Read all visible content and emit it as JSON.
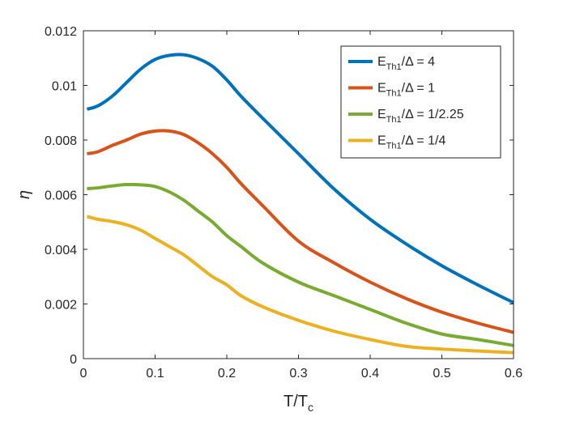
{
  "chart_data": {
    "type": "line",
    "title": "",
    "xlabel": "T/T",
    "xlabel_sub": "c",
    "ylabel": "η",
    "xlim": [
      0,
      0.6
    ],
    "ylim": [
      0,
      0.012
    ],
    "xticks": [
      0,
      0.1,
      0.2,
      0.3,
      0.4,
      0.5,
      0.6
    ],
    "xtick_labels": [
      "0",
      "0.1",
      "0.2",
      "0.3",
      "0.4",
      "0.5",
      "0.6"
    ],
    "yticks": [
      0,
      0.002,
      0.004,
      0.006,
      0.008,
      0.01,
      0.012
    ],
    "ytick_labels": [
      "0",
      "0.002",
      "0.004",
      "0.006",
      "0.008",
      "0.01",
      "0.012"
    ],
    "grid": false,
    "legend_position": "top-right",
    "series": [
      {
        "name": "E_Th1/Δ = 4",
        "label_main": "E",
        "label_sub": "Th1",
        "label_rest": "/Δ = 4",
        "color": "#0072BD",
        "x": [
          0.005,
          0.02,
          0.04,
          0.06,
          0.08,
          0.1,
          0.12,
          0.14,
          0.16,
          0.18,
          0.2,
          0.22,
          0.25,
          0.3,
          0.35,
          0.4,
          0.45,
          0.5,
          0.55,
          0.6
        ],
        "y": [
          0.00913,
          0.00925,
          0.0096,
          0.0101,
          0.0106,
          0.01095,
          0.0111,
          0.01112,
          0.01098,
          0.0107,
          0.0102,
          0.0096,
          0.0088,
          0.0075,
          0.0062,
          0.0051,
          0.0042,
          0.0034,
          0.0027,
          0.00205
        ]
      },
      {
        "name": "E_Th1/Δ = 1",
        "label_main": "E",
        "label_sub": "Th1",
        "label_rest": "/Δ = 1",
        "color": "#D95319",
        "x": [
          0.005,
          0.02,
          0.04,
          0.06,
          0.08,
          0.1,
          0.12,
          0.14,
          0.16,
          0.18,
          0.2,
          0.22,
          0.25,
          0.3,
          0.35,
          0.4,
          0.45,
          0.5,
          0.55,
          0.6
        ],
        "y": [
          0.0075,
          0.00757,
          0.0078,
          0.008,
          0.00822,
          0.00833,
          0.00833,
          0.0082,
          0.0079,
          0.0075,
          0.007,
          0.0064,
          0.0056,
          0.0043,
          0.0035,
          0.0028,
          0.0022,
          0.0017,
          0.0013,
          0.00096
        ]
      },
      {
        "name": "E_Th1/Δ = 1/2.25",
        "label_main": "E",
        "label_sub": "Th1",
        "label_rest": "/Δ = 1/2.25",
        "color": "#77AC30",
        "x": [
          0.005,
          0.02,
          0.04,
          0.06,
          0.08,
          0.1,
          0.12,
          0.14,
          0.16,
          0.18,
          0.2,
          0.22,
          0.25,
          0.3,
          0.35,
          0.4,
          0.45,
          0.5,
          0.55,
          0.6
        ],
        "y": [
          0.00622,
          0.00625,
          0.00632,
          0.00637,
          0.00636,
          0.0063,
          0.0061,
          0.0058,
          0.0054,
          0.005,
          0.0045,
          0.0041,
          0.0035,
          0.0028,
          0.0023,
          0.0018,
          0.0013,
          0.0009,
          0.0007,
          0.00048
        ]
      },
      {
        "name": "E_Th1/Δ = 1/4",
        "label_main": "E",
        "label_sub": "Th1",
        "label_rest": "/Δ = 1/4",
        "color": "#EDB120",
        "x": [
          0.005,
          0.02,
          0.04,
          0.06,
          0.08,
          0.1,
          0.12,
          0.14,
          0.16,
          0.18,
          0.2,
          0.22,
          0.25,
          0.3,
          0.35,
          0.4,
          0.45,
          0.5,
          0.55,
          0.6
        ],
        "y": [
          0.0052,
          0.0051,
          0.00502,
          0.0049,
          0.0047,
          0.0044,
          0.0041,
          0.0038,
          0.0034,
          0.003,
          0.0027,
          0.0023,
          0.0019,
          0.0014,
          0.001,
          0.0007,
          0.00045,
          0.00035,
          0.00028,
          0.00022
        ]
      }
    ]
  }
}
